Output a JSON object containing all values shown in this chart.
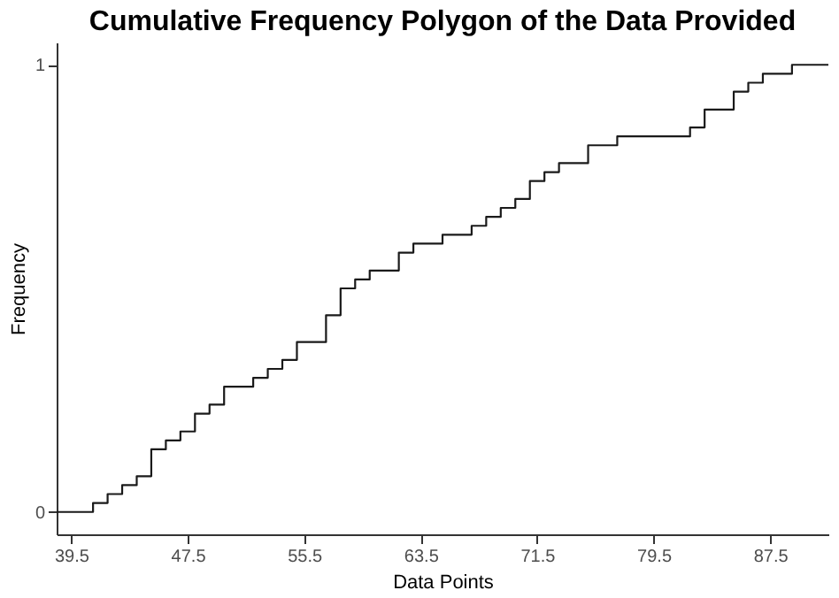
{
  "chart_data": {
    "type": "step",
    "title": "Cumulative Frequency Polygon of the Data Provided",
    "xlabel": "Data Points",
    "ylabel": "Frequency",
    "x": [
      38.5,
      41,
      42,
      43,
      44,
      45,
      46,
      47,
      48,
      49,
      50,
      52,
      53,
      54,
      55,
      57,
      58,
      59,
      60,
      62,
      63,
      65,
      67,
      68,
      69,
      70,
      71,
      72,
      73,
      75,
      77,
      82,
      83,
      85,
      86,
      87,
      89,
      91.5
    ],
    "series": [
      {
        "color": "#1a1a1a",
        "values": [
          0,
          0.02,
          0.04,
          0.06,
          0.08,
          0.14,
          0.16,
          0.18,
          0.22,
          0.24,
          0.28,
          0.3,
          0.32,
          0.34,
          0.38,
          0.44,
          0.5,
          0.52,
          0.54,
          0.58,
          0.6,
          0.62,
          0.64,
          0.66,
          0.68,
          0.7,
          0.74,
          0.76,
          0.78,
          0.82,
          0.84,
          0.86,
          0.9,
          0.94,
          0.96,
          0.98,
          1,
          1
        ]
      }
    ],
    "xlim": [
      38.5,
      91.5
    ],
    "xticks": [
      39.5,
      47.5,
      55.5,
      63.5,
      71.5,
      79.5,
      87.5
    ],
    "ylim": [
      -0.05,
      1.05
    ],
    "yticks": [
      0,
      1
    ],
    "grid": false
  }
}
